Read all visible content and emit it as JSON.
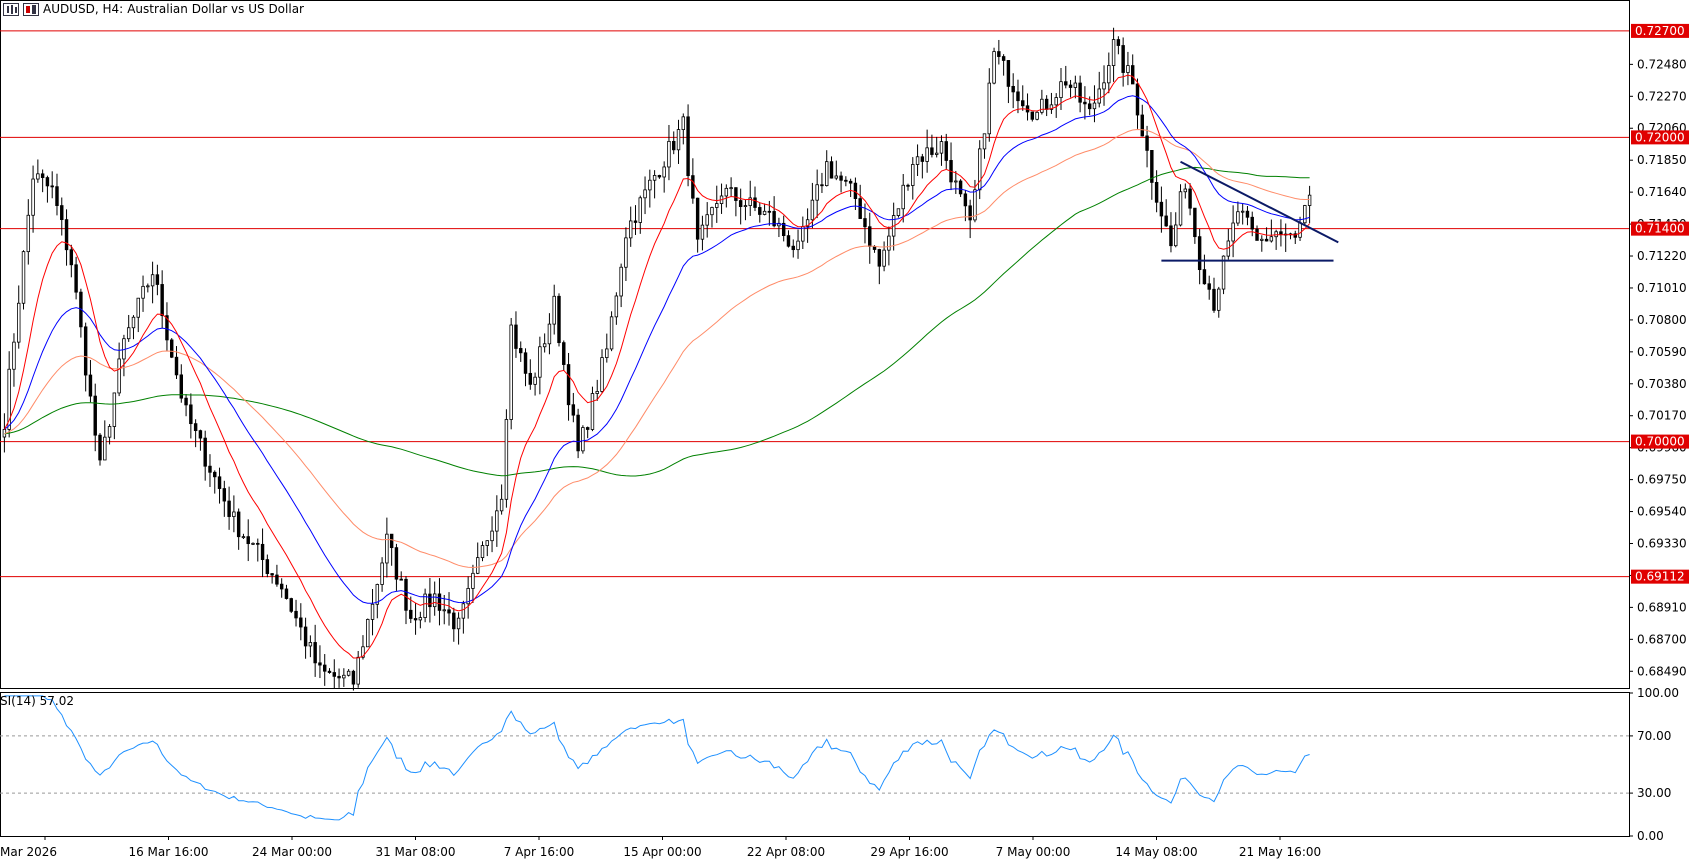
{
  "header": {
    "symbol": "AUDUSD, H4:",
    "description": "Australian Dollar vs US Dollar"
  },
  "rsi_title": "SI(14) 57.02",
  "colors": {
    "red": "#ff0000",
    "blue": "#0000ff",
    "salmon": "#ff8c69",
    "green": "#008000",
    "rsi": "#1e90ff",
    "trend": "#0b1a66",
    "hline": "#e00000",
    "candle": "#000000"
  },
  "chart_data": [
    {
      "type": "candlestick",
      "title": "AUDUSD, H4: Australian Dollar vs US Dollar",
      "ylim": [
        0.6838,
        0.7289
      ],
      "y_ticks": [
        "0.72480",
        "0.72270",
        "0.72060",
        "0.71850",
        "0.71640",
        "0.71430",
        "0.71220",
        "0.71010",
        "0.70800",
        "0.70590",
        "0.70380",
        "0.70170",
        "0.69960",
        "0.69750",
        "0.69540",
        "0.69330",
        "0.69120",
        "0.68910",
        "0.68700",
        "0.68490"
      ],
      "x_ticks": [
        "Mar 2026",
        "16 Mar 16:00",
        "24 Mar 00:00",
        "31 Mar 08:00",
        "7 Apr 16:00",
        "15 Apr 00:00",
        "22 Apr 08:00",
        "29 Apr 16:00",
        "7 May 00:00",
        "14 May 08:00",
        "21 May 16:00"
      ],
      "horizontal_levels": [
        {
          "value": 0.727,
          "label": "0.72700"
        },
        {
          "value": 0.72,
          "label": "0.72000"
        },
        {
          "value": 0.714,
          "label": "0.71400"
        },
        {
          "value": 0.7,
          "label": "0.70000"
        },
        {
          "value": 0.69112,
          "label": "0.69112"
        }
      ],
      "trendlines": [
        {
          "name": "descending",
          "from": {
            "bar": 246,
            "price": 0.7184
          },
          "to": {
            "bar": 279,
            "price": 0.7131
          }
        },
        {
          "name": "support",
          "from": {
            "bar": 242,
            "price": 0.7119
          },
          "to": {
            "bar": 278,
            "price": 0.7119
          }
        }
      ],
      "anchors": [
        {
          "bar": 0,
          "price": 0.7015
        },
        {
          "bar": 6,
          "price": 0.7175
        },
        {
          "bar": 10,
          "price": 0.7165
        },
        {
          "bar": 14,
          "price": 0.7118
        },
        {
          "bar": 20,
          "price": 0.6982
        },
        {
          "bar": 25,
          "price": 0.7065
        },
        {
          "bar": 31,
          "price": 0.7112
        },
        {
          "bar": 38,
          "price": 0.7018
        },
        {
          "bar": 48,
          "price": 0.6948
        },
        {
          "bar": 58,
          "price": 0.6905
        },
        {
          "bar": 66,
          "price": 0.6848
        },
        {
          "bar": 73,
          "price": 0.6842
        },
        {
          "bar": 80,
          "price": 0.6935
        },
        {
          "bar": 85,
          "price": 0.6885
        },
        {
          "bar": 90,
          "price": 0.6898
        },
        {
          "bar": 95,
          "price": 0.6878
        },
        {
          "bar": 100,
          "price": 0.6928
        },
        {
          "bar": 104,
          "price": 0.6968
        },
        {
          "bar": 106,
          "price": 0.7075
        },
        {
          "bar": 110,
          "price": 0.7035
        },
        {
          "bar": 115,
          "price": 0.709
        },
        {
          "bar": 120,
          "price": 0.6992
        },
        {
          "bar": 126,
          "price": 0.706
        },
        {
          "bar": 130,
          "price": 0.7138
        },
        {
          "bar": 136,
          "price": 0.7175
        },
        {
          "bar": 142,
          "price": 0.7208
        },
        {
          "bar": 145,
          "price": 0.7128
        },
        {
          "bar": 150,
          "price": 0.7165
        },
        {
          "bar": 160,
          "price": 0.7148
        },
        {
          "bar": 166,
          "price": 0.7125
        },
        {
          "bar": 172,
          "price": 0.7182
        },
        {
          "bar": 178,
          "price": 0.716
        },
        {
          "bar": 183,
          "price": 0.7115
        },
        {
          "bar": 190,
          "price": 0.7185
        },
        {
          "bar": 196,
          "price": 0.7195
        },
        {
          "bar": 202,
          "price": 0.714
        },
        {
          "bar": 207,
          "price": 0.7255
        },
        {
          "bar": 212,
          "price": 0.723
        },
        {
          "bar": 216,
          "price": 0.7215
        },
        {
          "bar": 222,
          "price": 0.7238
        },
        {
          "bar": 227,
          "price": 0.7215
        },
        {
          "bar": 232,
          "price": 0.726
        },
        {
          "bar": 236,
          "price": 0.7235
        },
        {
          "bar": 240,
          "price": 0.7175
        },
        {
          "bar": 244,
          "price": 0.7128
        },
        {
          "bar": 247,
          "price": 0.7172
        },
        {
          "bar": 250,
          "price": 0.712
        },
        {
          "bar": 253,
          "price": 0.7092
        },
        {
          "bar": 258,
          "price": 0.7152
        },
        {
          "bar": 262,
          "price": 0.713
        },
        {
          "bar": 266,
          "price": 0.7138
        },
        {
          "bar": 270,
          "price": 0.7132
        },
        {
          "bar": 273,
          "price": 0.7162
        }
      ],
      "total_bars": 274,
      "moving_averages": [
        "red fast MA",
        "blue MA",
        "salmon MA",
        "green long MA"
      ]
    },
    {
      "type": "line",
      "title": "SI(14) 57.02",
      "ylim": [
        0,
        100
      ],
      "y_ticks": [
        "100.00",
        "70.00",
        "30.00",
        "0.00"
      ],
      "levels": [
        70,
        30
      ],
      "current": 57.02
    }
  ]
}
